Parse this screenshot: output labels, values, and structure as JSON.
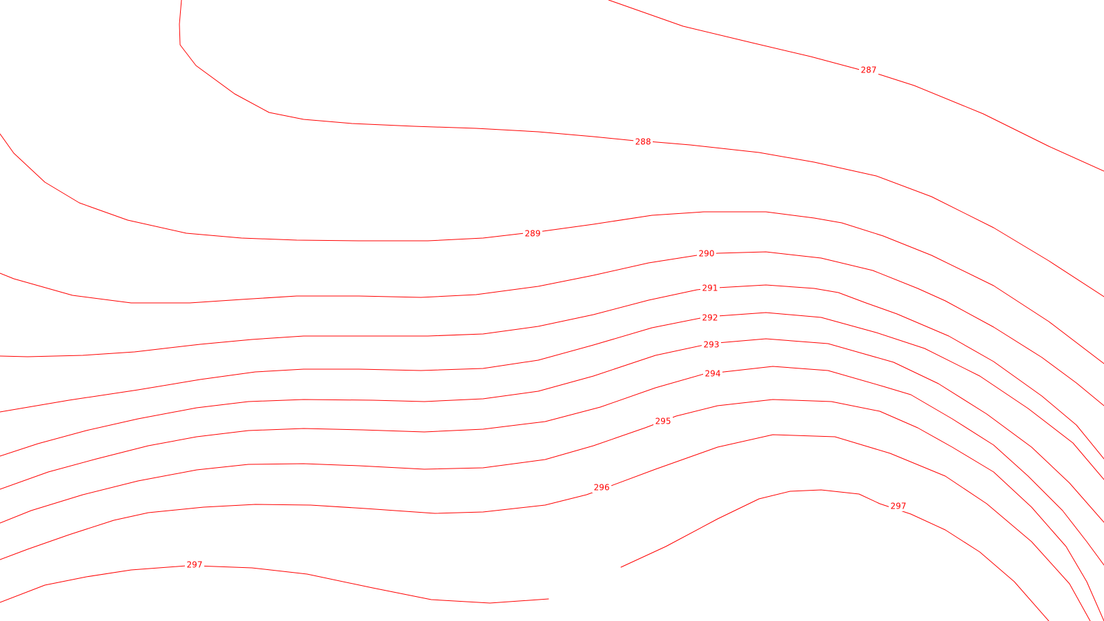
{
  "map": {
    "line_color": "#ff0000",
    "background_color": "#ffffff",
    "labels": {
      "c287": "287",
      "c288": "288",
      "c289": "289",
      "c290": "290",
      "c291": "291",
      "c292": "292",
      "c293": "293",
      "c294": "294",
      "c295": "295",
      "c296": "296",
      "c297a": "297",
      "c297b": "297"
    }
  }
}
